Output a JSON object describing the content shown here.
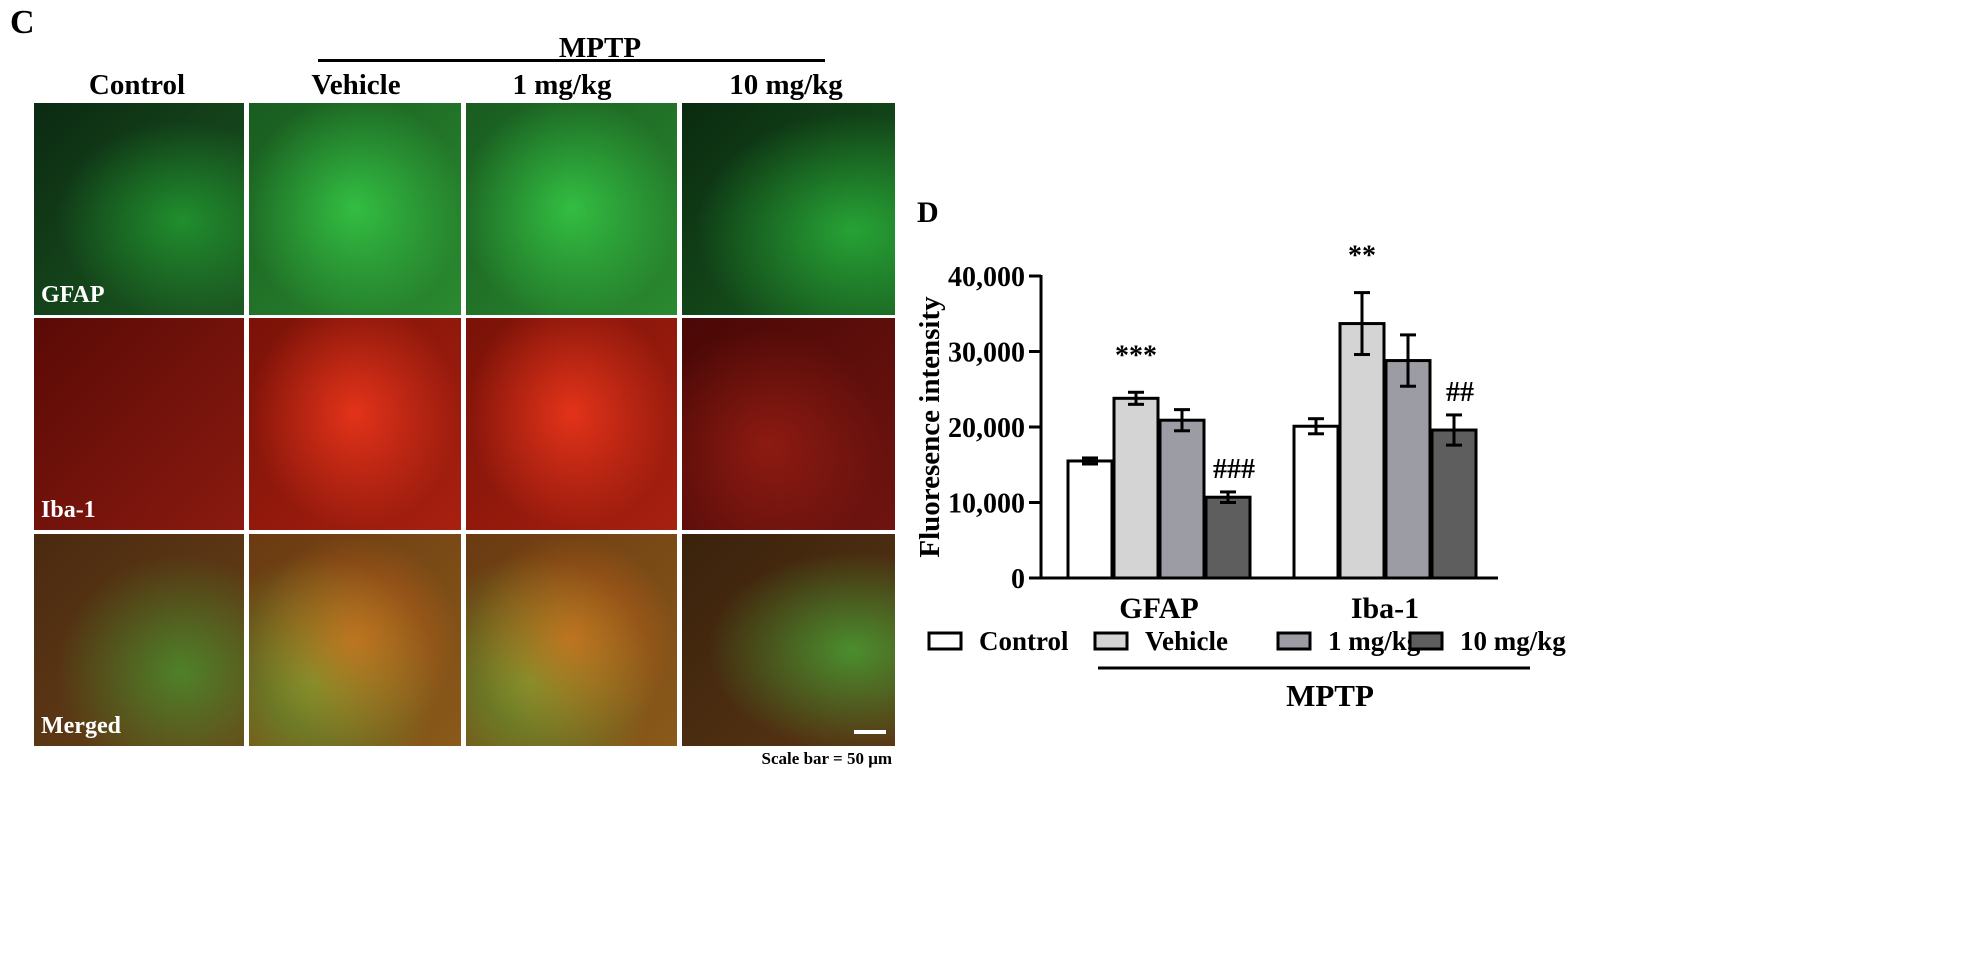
{
  "panel_c": {
    "letter": "C",
    "group_label": "MPTP",
    "columns": [
      "Control",
      "Vehicle",
      "1 mg/kg",
      "10 mg/kg"
    ],
    "rows": [
      "GFAP",
      "Iba-1",
      "Merged"
    ],
    "scale_text": "Scale bar = 50 μm"
  },
  "panel_d": {
    "letter": "D",
    "group_label": "MPTP"
  },
  "chart_data": {
    "type": "bar",
    "categories": [
      "GFAP",
      "Iba-1"
    ],
    "ylabel": "Fluoresence intensity",
    "xlabel": "",
    "ylim": [
      0,
      40000
    ],
    "yticks": [
      0,
      10000,
      20000,
      30000,
      40000
    ],
    "ytick_labels": [
      "0",
      "10,000",
      "20,000",
      "30,000",
      "40,000"
    ],
    "series": [
      {
        "name": "Control",
        "color": "#ffffff",
        "values": [
          15500,
          20100
        ],
        "errors": [
          400,
          1000
        ]
      },
      {
        "name": "Vehicle",
        "color": "#d4d4d4",
        "values": [
          23800,
          33700
        ],
        "errors": [
          800,
          4100
        ]
      },
      {
        "name": "1 mg/kg",
        "color": "#9c9ca4",
        "values": [
          20900,
          28800
        ],
        "errors": [
          1400,
          3400
        ]
      },
      {
        "name": "10 mg/kg",
        "color": "#5e5e5e",
        "values": [
          10700,
          19600
        ],
        "errors": [
          700,
          2000
        ]
      }
    ],
    "annotations": [
      {
        "category": "GFAP",
        "series": "Vehicle",
        "text": "***"
      },
      {
        "category": "GFAP",
        "series": "10 mg/kg",
        "text": "###"
      },
      {
        "category": "Iba-1",
        "series": "Vehicle",
        "text": "**"
      },
      {
        "category": "Iba-1",
        "series": "10 mg/kg",
        "text": "##"
      }
    ],
    "legend_position": "bottom",
    "grid": false
  }
}
